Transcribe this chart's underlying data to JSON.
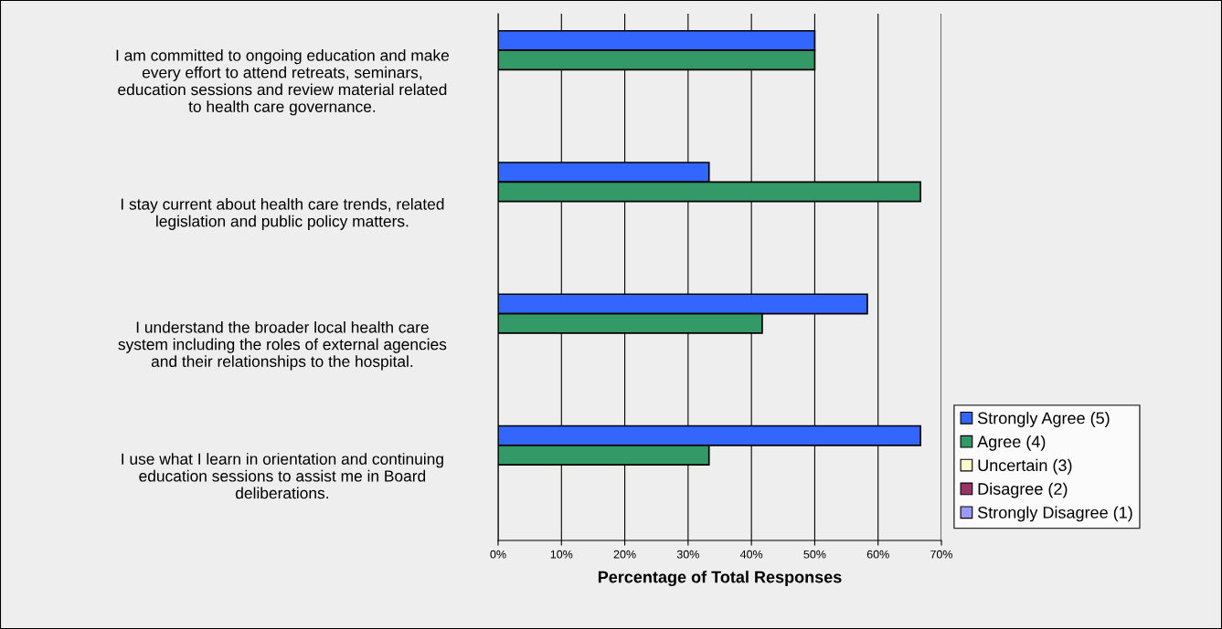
{
  "chart_data": {
    "type": "bar",
    "orientation": "horizontal",
    "xlabel": "Percentage of Total Responses",
    "categories": [
      "I am committed to ongoing education and make\nevery effort to attend retreats, seminars,\neducation sessions and review material related\nto health care governance.",
      "I stay current about health care trends, related\nlegislation and public policy matters.",
      "I understand the broader local health care\nsystem including the roles of external agencies\nand their relationships to the hospital.",
      "I use what I learn in orientation and continuing\neducation sessions to assist me in Board\ndeliberations."
    ],
    "series": [
      {
        "name": "Strongly Agree (5)",
        "color": "#3366ff",
        "values": [
          50,
          33.3,
          58.3,
          66.7
        ]
      },
      {
        "name": "Agree (4)",
        "color": "#339966",
        "values": [
          50,
          66.7,
          41.7,
          33.3
        ]
      },
      {
        "name": "Uncertain (3)",
        "color": "#ffffcc",
        "values": [
          0,
          0,
          0,
          0
        ]
      },
      {
        "name": "Disagree (2)",
        "color": "#993366",
        "values": [
          0,
          0,
          0,
          0
        ]
      },
      {
        "name": "Strongly Disagree (1)",
        "color": "#9999ff",
        "values": [
          0,
          0,
          0,
          0
        ]
      }
    ],
    "xlim": [
      0,
      70
    ],
    "xticks": [
      {
        "value": 0,
        "label": "0%"
      },
      {
        "value": 10,
        "label": "10%"
      },
      {
        "value": 20,
        "label": "20%"
      },
      {
        "value": 30,
        "label": "30%"
      },
      {
        "value": 40,
        "label": "40%"
      },
      {
        "value": 50,
        "label": "50%"
      },
      {
        "value": 60,
        "label": "60%"
      },
      {
        "value": 70,
        "label": "70%"
      }
    ],
    "grid": "x",
    "legend": "right"
  }
}
